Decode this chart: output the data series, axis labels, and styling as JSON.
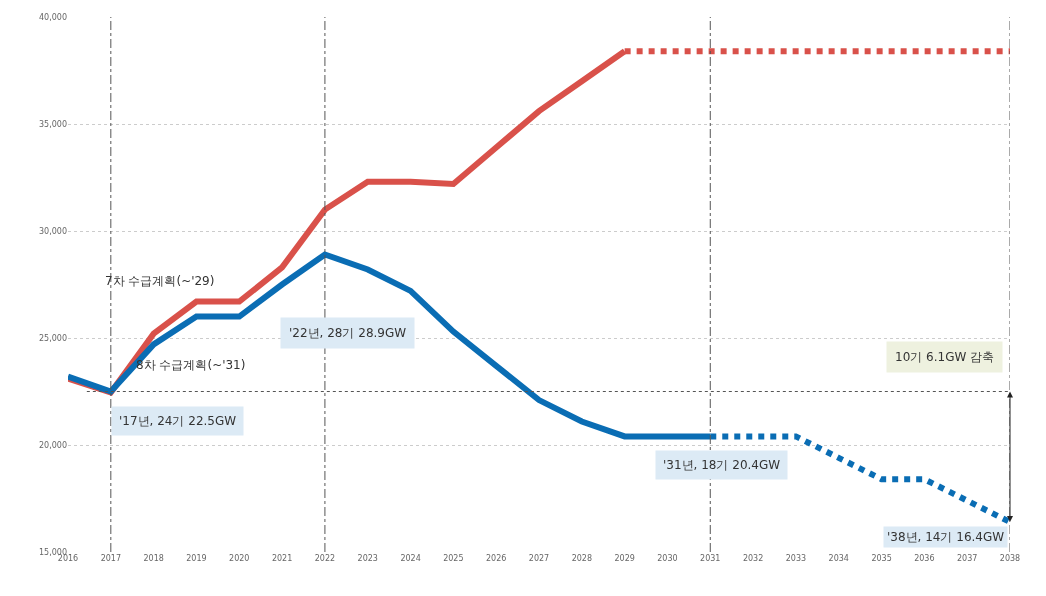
{
  "chart_data": {
    "type": "line",
    "series": [
      {
        "name": "7차 수급계획(~'29)",
        "color": "#d9514a",
        "x": [
          2016,
          2017,
          2018,
          2019,
          2020,
          2021,
          2022,
          2023,
          2024,
          2025,
          2026,
          2027,
          2028,
          2029
        ],
        "values": [
          23100,
          22450,
          25200,
          26700,
          26700,
          28300,
          31000,
          32300,
          32300,
          32200,
          33900,
          35600,
          37000,
          38400
        ],
        "line_style": "solid"
      },
      {
        "color": "#d9514a",
        "x": [
          2029,
          2030,
          2031,
          2032,
          2033,
          2034,
          2035,
          2036,
          2037,
          2038
        ],
        "values": [
          38400,
          38400,
          38400,
          38400,
          38400,
          38400,
          38400,
          38400,
          38400,
          38400
        ],
        "line_style": "dotted"
      },
      {
        "name": "8차 수급계획(~'31)",
        "color": "#0a6db4",
        "x": [
          2016,
          2017,
          2018,
          2019,
          2020,
          2021,
          2022,
          2023,
          2024,
          2025,
          2026,
          2027,
          2028,
          2029,
          2030,
          2031
        ],
        "values": [
          23200,
          22500,
          24700,
          26000,
          26000,
          27500,
          28900,
          28200,
          27200,
          25300,
          23700,
          22100,
          21100,
          20400,
          20400,
          20400
        ],
        "line_style": "solid"
      },
      {
        "color": "#0a6db4",
        "x": [
          2031,
          2032,
          2033,
          2034,
          2035,
          2036,
          2037,
          2038
        ],
        "values": [
          20400,
          20400,
          20400,
          19400,
          18400,
          18400,
          17400,
          16400
        ],
        "line_style": "dotted"
      }
    ],
    "xlim": [
      2016,
      2038
    ],
    "xticks": [
      2016,
      2017,
      2018,
      2019,
      2020,
      2021,
      2022,
      2023,
      2024,
      2025,
      2026,
      2027,
      2028,
      2029,
      2030,
      2031,
      2032,
      2033,
      2034,
      2035,
      2036,
      2037,
      2038
    ],
    "ylim": [
      15000,
      40000
    ],
    "yticks": [
      {
        "value": 15000,
        "label": "15,000"
      },
      {
        "value": 20000,
        "label": "20,000"
      },
      {
        "value": 25000,
        "label": "25,000"
      },
      {
        "value": 30000,
        "label": "30,000"
      },
      {
        "value": 35000,
        "label": "35,000"
      },
      {
        "value": 40000,
        "label": "40,000"
      }
    ],
    "grid": "y",
    "legend": false,
    "marker": "none",
    "ref_lines": [
      {
        "axis": "x",
        "value": 2017
      },
      {
        "axis": "x",
        "value": 2022
      },
      {
        "axis": "x",
        "value": 2031
      },
      {
        "axis": "x",
        "value": 2038
      },
      {
        "axis": "y",
        "value": 22500
      }
    ],
    "annotations": [
      {
        "text": "'17년, 24기 22.5GW",
        "x": 2017,
        "y": 22500
      },
      "'22년, 28기 28.9GW",
      {
        "text": "'31년, 18기 20.4GW",
        "x": 2031,
        "y": 20400
      },
      {
        "text": "'38년, 14기 16.4GW",
        "x": 2038,
        "y": 16400
      },
      "10기 6.1GW 감축"
    ]
  }
}
